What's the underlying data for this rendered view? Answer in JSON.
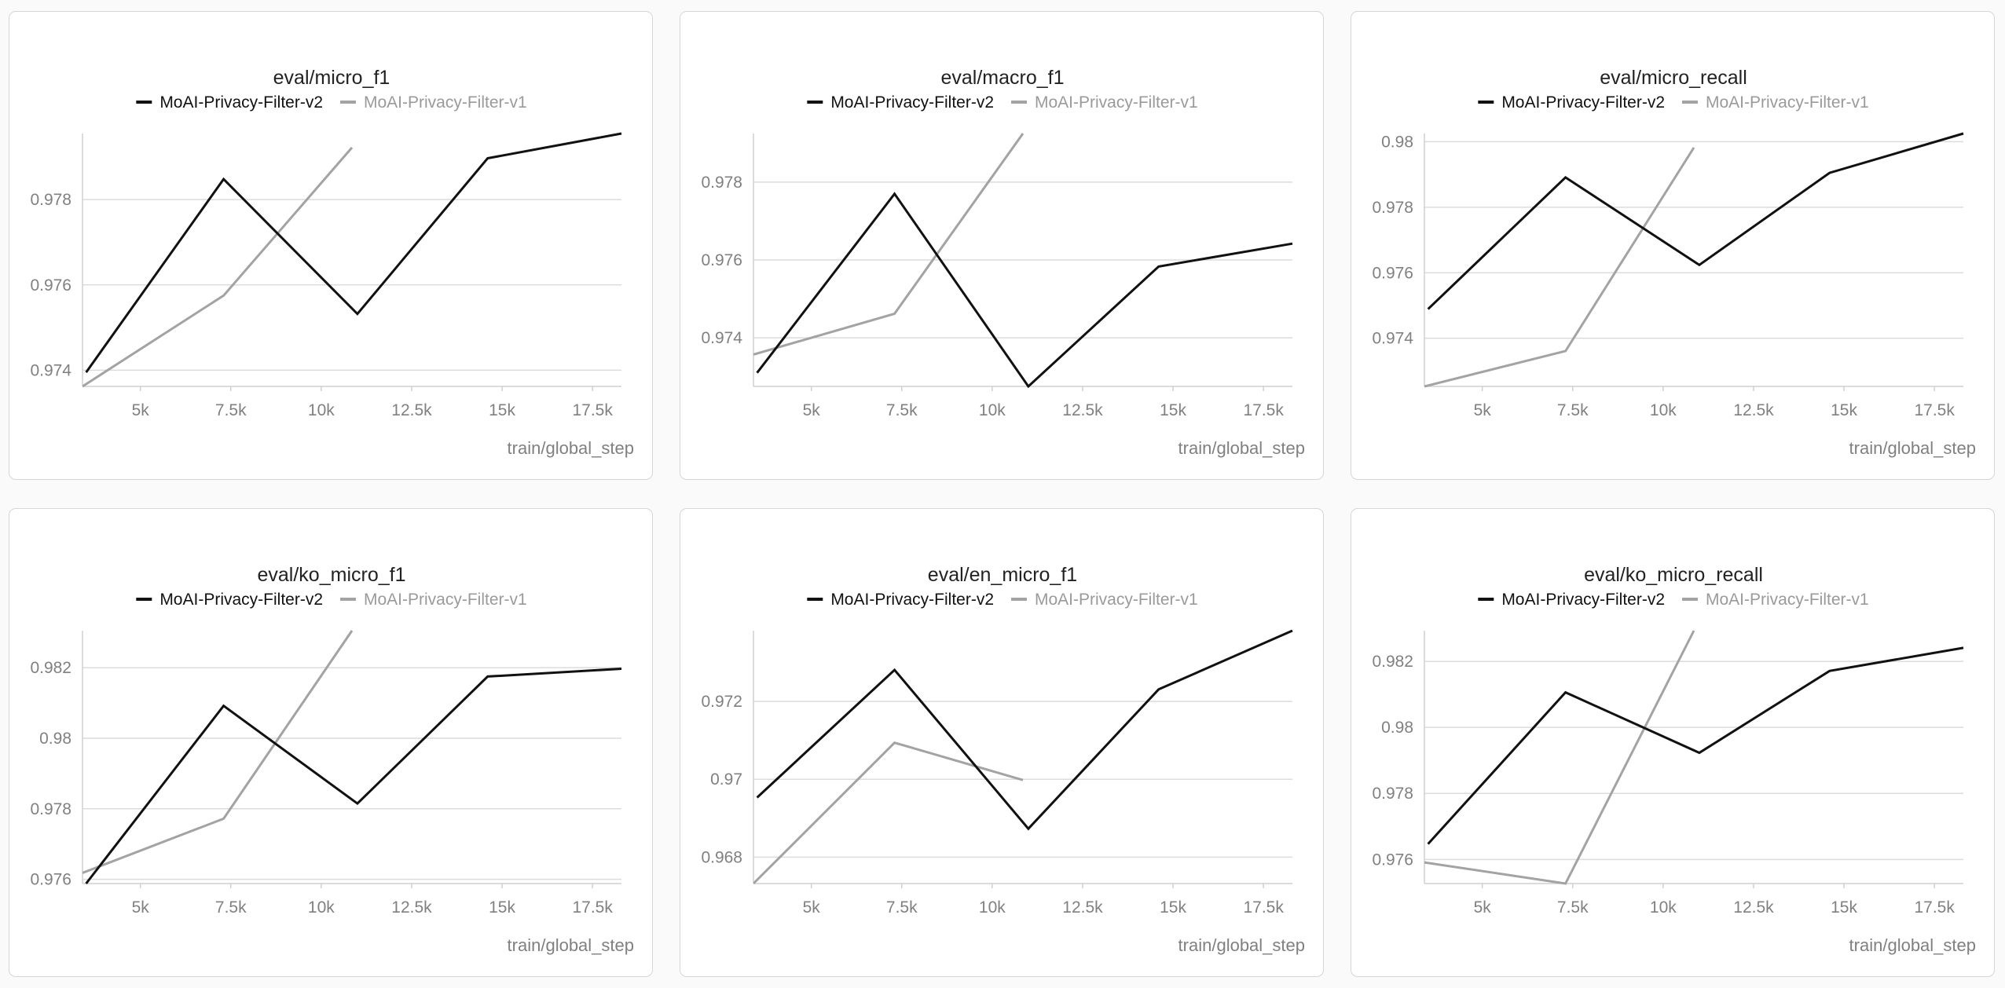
{
  "colors": {
    "series_v2": "#111111",
    "series_v1": "#a3a3a3",
    "grid": "#dcdcdc",
    "axis": "#cfcfcf",
    "tick_text": "#808080"
  },
  "chart_data": [
    {
      "type": "line",
      "title": "eval/micro_f1",
      "xlabel": "train/global_step",
      "ylabel": "",
      "xlim": [
        3400,
        18300
      ],
      "ylim": [
        0.97362,
        0.97955
      ],
      "x_ticks": [
        5000,
        7500,
        10000,
        12500,
        15000,
        17500
      ],
      "x_tick_labels": [
        "5k",
        "7.5k",
        "10k",
        "12.5k",
        "15k",
        "17.5k"
      ],
      "y_ticks": [
        0.974,
        0.976,
        0.978
      ],
      "y_tick_labels": [
        "0.974",
        "0.976",
        "0.978"
      ],
      "grid": true,
      "legend": "top-center",
      "series": [
        {
          "name": "MoAI-Privacy-Filter-v2",
          "x": [
            3500,
            7300,
            11000,
            14600,
            18300
          ],
          "y": [
            0.97395,
            0.97848,
            0.97532,
            0.97897,
            0.97955
          ]
        },
        {
          "name": "MoAI-Privacy-Filter-v1",
          "x": [
            3400,
            7300,
            10850
          ],
          "y": [
            0.97362,
            0.97575,
            0.97922
          ]
        }
      ]
    },
    {
      "type": "line",
      "title": "eval/macro_f1",
      "xlabel": "train/global_step",
      "ylabel": "",
      "xlim": [
        3400,
        18300
      ],
      "ylim": [
        0.97275,
        0.97925
      ],
      "x_ticks": [
        5000,
        7500,
        10000,
        12500,
        15000,
        17500
      ],
      "x_tick_labels": [
        "5k",
        "7.5k",
        "10k",
        "12.5k",
        "15k",
        "17.5k"
      ],
      "y_ticks": [
        0.974,
        0.976,
        0.978
      ],
      "y_tick_labels": [
        "0.974",
        "0.976",
        "0.978"
      ],
      "grid": true,
      "legend": "top-center",
      "series": [
        {
          "name": "MoAI-Privacy-Filter-v2",
          "x": [
            3500,
            7300,
            11000,
            14600,
            18300
          ],
          "y": [
            0.9731,
            0.9777,
            0.97275,
            0.97583,
            0.97642
          ]
        },
        {
          "name": "MoAI-Privacy-Filter-v1",
          "x": [
            3400,
            7300,
            10850
          ],
          "y": [
            0.97357,
            0.97462,
            0.97925
          ]
        }
      ]
    },
    {
      "type": "line",
      "title": "eval/micro_recall",
      "xlabel": "train/global_step",
      "ylabel": "",
      "xlim": [
        3400,
        18300
      ],
      "ylim": [
        0.97253,
        0.98025
      ],
      "x_ticks": [
        5000,
        7500,
        10000,
        12500,
        15000,
        17500
      ],
      "x_tick_labels": [
        "5k",
        "7.5k",
        "10k",
        "12.5k",
        "15k",
        "17.5k"
      ],
      "y_ticks": [
        0.974,
        0.976,
        0.978,
        0.98
      ],
      "y_tick_labels": [
        "0.974",
        "0.976",
        "0.978",
        "0.98"
      ],
      "grid": true,
      "legend": "top-center",
      "series": [
        {
          "name": "MoAI-Privacy-Filter-v2",
          "x": [
            3500,
            7300,
            11000,
            14600,
            18300
          ],
          "y": [
            0.97489,
            0.97891,
            0.97624,
            0.97905,
            0.98025
          ]
        },
        {
          "name": "MoAI-Privacy-Filter-v1",
          "x": [
            3400,
            7300,
            10850
          ],
          "y": [
            0.97253,
            0.97361,
            0.97982
          ]
        }
      ]
    },
    {
      "type": "line",
      "title": "eval/ko_micro_f1",
      "xlabel": "train/global_step",
      "ylabel": "",
      "xlim": [
        3400,
        18300
      ],
      "ylim": [
        0.97588,
        0.98305
      ],
      "x_ticks": [
        5000,
        7500,
        10000,
        12500,
        15000,
        17500
      ],
      "x_tick_labels": [
        "5k",
        "7.5k",
        "10k",
        "12.5k",
        "15k",
        "17.5k"
      ],
      "y_ticks": [
        0.976,
        0.978,
        0.98,
        0.982
      ],
      "y_tick_labels": [
        "0.976",
        "0.978",
        "0.98",
        "0.982"
      ],
      "grid": true,
      "legend": "top-center",
      "series": [
        {
          "name": "MoAI-Privacy-Filter-v2",
          "x": [
            3500,
            7300,
            11000,
            14600,
            18300
          ],
          "y": [
            0.97588,
            0.98092,
            0.97815,
            0.98175,
            0.98197
          ]
        },
        {
          "name": "MoAI-Privacy-Filter-v1",
          "x": [
            3400,
            7300,
            10850
          ],
          "y": [
            0.97618,
            0.97772,
            0.98305
          ]
        }
      ]
    },
    {
      "type": "line",
      "title": "eval/en_micro_f1",
      "xlabel": "train/global_step",
      "ylabel": "",
      "xlim": [
        3400,
        18300
      ],
      "ylim": [
        0.96732,
        0.97382
      ],
      "x_ticks": [
        5000,
        7500,
        10000,
        12500,
        15000,
        17500
      ],
      "x_tick_labels": [
        "5k",
        "7.5k",
        "10k",
        "12.5k",
        "15k",
        "17.5k"
      ],
      "y_ticks": [
        0.968,
        0.97,
        0.972
      ],
      "y_tick_labels": [
        "0.968",
        "0.97",
        "0.972"
      ],
      "grid": true,
      "legend": "top-center",
      "series": [
        {
          "name": "MoAI-Privacy-Filter-v2",
          "x": [
            3500,
            7300,
            11000,
            14600,
            18300
          ],
          "y": [
            0.96953,
            0.97281,
            0.96873,
            0.97231,
            0.97382
          ]
        },
        {
          "name": "MoAI-Privacy-Filter-v1",
          "x": [
            3400,
            7300,
            10850
          ],
          "y": [
            0.96732,
            0.97094,
            0.96998
          ]
        }
      ]
    },
    {
      "type": "line",
      "title": "eval/ko_micro_recall",
      "xlabel": "train/global_step",
      "ylabel": "",
      "xlim": [
        3400,
        18300
      ],
      "ylim": [
        0.97527,
        0.98293
      ],
      "x_ticks": [
        5000,
        7500,
        10000,
        12500,
        15000,
        17500
      ],
      "x_tick_labels": [
        "5k",
        "7.5k",
        "10k",
        "12.5k",
        "15k",
        "17.5k"
      ],
      "y_ticks": [
        0.976,
        0.978,
        0.98,
        0.982
      ],
      "y_tick_labels": [
        "0.976",
        "0.978",
        "0.98",
        "0.982"
      ],
      "grid": true,
      "legend": "top-center",
      "series": [
        {
          "name": "MoAI-Privacy-Filter-v2",
          "x": [
            3500,
            7300,
            11000,
            14600,
            18300
          ],
          "y": [
            0.97647,
            0.98106,
            0.97923,
            0.98171,
            0.98241
          ]
        },
        {
          "name": "MoAI-Privacy-Filter-v1",
          "x": [
            3400,
            7300,
            10850
          ],
          "y": [
            0.97591,
            0.97527,
            0.98293
          ]
        }
      ]
    }
  ]
}
